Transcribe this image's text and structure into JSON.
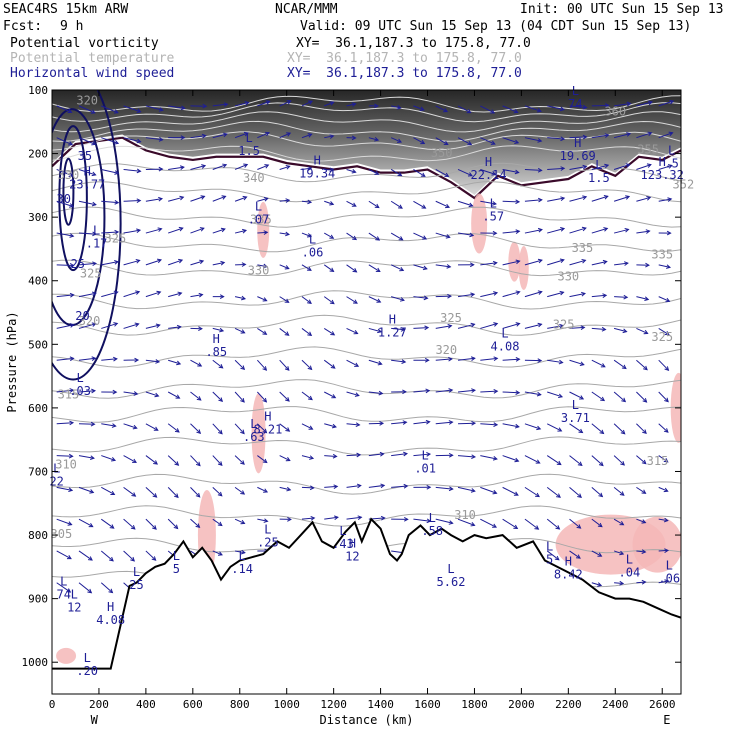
{
  "header": {
    "model": "SEAC4RS 15km ARW",
    "producer": "NCAR/MMM",
    "init": "Init: 00 UTC Sun 15 Sep 13",
    "fcst_label": "Fcst:",
    "fcst_value": "9 h",
    "valid": "Valid: 09 UTC Sun 15 Sep 13 (04 CDT Sun 15 Sep 13)",
    "fields": [
      {
        "name": "Potential vorticity",
        "xy": "XY=  36.1,187.3 to 175.8, 77.0",
        "color": "#000000"
      },
      {
        "name": "Potential temperature",
        "xy": "XY=  36.1,187.3 to 175.8, 77.0",
        "color": "#b4b4b4"
      },
      {
        "name": "Horizontal wind speed",
        "xy": "XY=  36.1,187.3 to 175.8, 77.0",
        "color": "#1e1e96"
      }
    ]
  },
  "chart_data": {
    "type": "cross-section",
    "xlabel": "Distance (km)",
    "ylabel": "Pressure (hPa)",
    "xlim": [
      0,
      2680
    ],
    "ylim": [
      1050,
      100
    ],
    "x_ticks": [
      0,
      200,
      400,
      600,
      800,
      1000,
      1200,
      1400,
      1600,
      1800,
      2000,
      2200,
      2400,
      2600
    ],
    "y_ticks": [
      100,
      200,
      300,
      400,
      500,
      600,
      700,
      800,
      900,
      1000
    ],
    "x_end_labels": {
      "left": "W",
      "right": "E"
    },
    "terrain_surface": [
      [
        0,
        1010
      ],
      [
        60,
        1010
      ],
      [
        250,
        1010
      ],
      [
        330,
        880
      ],
      [
        360,
        875
      ],
      [
        400,
        860
      ],
      [
        440,
        850
      ],
      [
        480,
        845
      ],
      [
        520,
        830
      ],
      [
        560,
        810
      ],
      [
        600,
        835
      ],
      [
        640,
        820
      ],
      [
        680,
        840
      ],
      [
        720,
        870
      ],
      [
        760,
        850
      ],
      [
        800,
        840
      ],
      [
        850,
        835
      ],
      [
        900,
        830
      ],
      [
        960,
        810
      ],
      [
        1010,
        820
      ],
      [
        1060,
        800
      ],
      [
        1110,
        780
      ],
      [
        1150,
        810
      ],
      [
        1200,
        820
      ],
      [
        1250,
        795
      ],
      [
        1290,
        780
      ],
      [
        1320,
        810
      ],
      [
        1360,
        775
      ],
      [
        1400,
        790
      ],
      [
        1440,
        830
      ],
      [
        1470,
        840
      ],
      [
        1490,
        830
      ],
      [
        1520,
        800
      ],
      [
        1570,
        785
      ],
      [
        1610,
        800
      ],
      [
        1660,
        790
      ],
      [
        1700,
        800
      ],
      [
        1750,
        810
      ],
      [
        1800,
        800
      ],
      [
        1850,
        805
      ],
      [
        1920,
        800
      ],
      [
        1980,
        820
      ],
      [
        2050,
        810
      ],
      [
        2100,
        840
      ],
      [
        2180,
        855
      ],
      [
        2260,
        870
      ],
      [
        2330,
        890
      ],
      [
        2400,
        900
      ],
      [
        2460,
        900
      ],
      [
        2520,
        905
      ],
      [
        2580,
        915
      ],
      [
        2640,
        925
      ],
      [
        2680,
        930
      ]
    ],
    "theta_labels": [
      {
        "x": 270,
        "p": 340,
        "text": "325"
      },
      {
        "x": 70,
        "p": 240,
        "text": "330"
      },
      {
        "x": 165,
        "p": 395,
        "text": "325"
      },
      {
        "x": 160,
        "p": 470,
        "text": "320"
      },
      {
        "x": 70,
        "p": 585,
        "text": "315"
      },
      {
        "x": 60,
        "p": 695,
        "text": "310"
      },
      {
        "x": 40,
        "p": 805,
        "text": "305"
      },
      {
        "x": 880,
        "p": 390,
        "text": "330"
      },
      {
        "x": 860,
        "p": 245,
        "text": "340"
      },
      {
        "x": 890,
        "p": 310,
        "text": "335"
      },
      {
        "x": 1680,
        "p": 515,
        "text": "320"
      },
      {
        "x": 1660,
        "p": 205,
        "text": "350"
      },
      {
        "x": 1700,
        "p": 465,
        "text": "325"
      },
      {
        "x": 2260,
        "p": 355,
        "text": "335"
      },
      {
        "x": 2200,
        "p": 400,
        "text": "330"
      },
      {
        "x": 2180,
        "p": 475,
        "text": "325"
      },
      {
        "x": 2600,
        "p": 365,
        "text": "335"
      },
      {
        "x": 2600,
        "p": 495,
        "text": "325"
      },
      {
        "x": 2580,
        "p": 690,
        "text": "315"
      },
      {
        "x": 1760,
        "p": 775,
        "text": "310"
      },
      {
        "x": 2400,
        "p": 140,
        "text": "360"
      },
      {
        "x": 2540,
        "p": 200,
        "text": "355"
      },
      {
        "x": 2690,
        "p": 255,
        "text": "352"
      },
      {
        "x": 150,
        "p": 123,
        "text": "320"
      }
    ],
    "speed_labels": [
      {
        "x": 110,
        "p": 380,
        "text": "25"
      },
      {
        "x": 130,
        "p": 462,
        "text": "20"
      },
      {
        "x": 140,
        "p": 210,
        "text": "35"
      },
      {
        "x": 50,
        "p": 278,
        "text": "30"
      }
    ],
    "extrema": [
      {
        "type": "L",
        "x": 190,
        "p": 348,
        "value": ".17"
      },
      {
        "type": "L",
        "x": 120,
        "p": 580,
        "value": ".03"
      },
      {
        "type": "L",
        "x": 20,
        "p": 722,
        "value": "22"
      },
      {
        "type": "L",
        "x": 50,
        "p": 900,
        "value": "74"
      },
      {
        "type": "L",
        "x": 95,
        "p": 920,
        "value": "12"
      },
      {
        "type": "H",
        "x": 150,
        "p": 255,
        "value": "23.77"
      },
      {
        "type": "L",
        "x": 360,
        "p": 885,
        "value": "25"
      },
      {
        "type": "H",
        "x": 250,
        "p": 940,
        "value": "4.08"
      },
      {
        "type": "L",
        "x": 150,
        "p": 1020,
        "value": ".20"
      },
      {
        "type": "L",
        "x": 530,
        "p": 860,
        "value": "5"
      },
      {
        "type": "L",
        "x": 810,
        "p": 860,
        "value": ".14"
      },
      {
        "type": "H",
        "x": 700,
        "p": 518,
        "value": ".85"
      },
      {
        "type": "L",
        "x": 880,
        "p": 310,
        "value": ".07"
      },
      {
        "type": "L",
        "x": 1110,
        "p": 362,
        "value": ".06"
      },
      {
        "type": "H",
        "x": 1130,
        "p": 238,
        "value": "19.34"
      },
      {
        "type": "L",
        "x": 840,
        "p": 202,
        "value": "1.5"
      },
      {
        "type": "L",
        "x": 860,
        "p": 652,
        "value": ".63"
      },
      {
        "type": "H",
        "x": 920,
        "p": 640,
        "value": "8.21"
      },
      {
        "type": "L",
        "x": 920,
        "p": 818,
        "value": ".25"
      },
      {
        "type": "L",
        "x": 1240,
        "p": 820,
        "value": ".43"
      },
      {
        "type": "H",
        "x": 1280,
        "p": 840,
        "value": "12"
      },
      {
        "type": "H",
        "x": 1450,
        "p": 488,
        "value": "1.27"
      },
      {
        "type": "L",
        "x": 1590,
        "p": 702,
        "value": ".01"
      },
      {
        "type": "L",
        "x": 1620,
        "p": 800,
        "value": ".58"
      },
      {
        "type": "L",
        "x": 1700,
        "p": 880,
        "value": "5.62"
      },
      {
        "type": "H",
        "x": 1860,
        "p": 240,
        "value": "22.14"
      },
      {
        "type": "L",
        "x": 1880,
        "p": 305,
        "value": ".57"
      },
      {
        "type": "L",
        "x": 1930,
        "p": 510,
        "value": "4.08"
      },
      {
        "type": "L",
        "x": 2230,
        "p": 128,
        "value": "74"
      },
      {
        "type": "H",
        "x": 2240,
        "p": 210,
        "value": "19.69"
      },
      {
        "type": "L",
        "x": 2330,
        "p": 245,
        "value": "1.5"
      },
      {
        "type": "L",
        "x": 2230,
        "p": 622,
        "value": "3.71"
      },
      {
        "type": "L",
        "x": 2120,
        "p": 845,
        "value": "5"
      },
      {
        "type": "H",
        "x": 2200,
        "p": 868,
        "value": "8.42"
      },
      {
        "type": "L",
        "x": 2460,
        "p": 865,
        "value": ".04"
      },
      {
        "type": "L",
        "x": 2630,
        "p": 875,
        "value": ".06"
      },
      {
        "type": "H",
        "x": 2600,
        "p": 240,
        "value": "123.32"
      },
      {
        "type": "L",
        "x": 2640,
        "p": 222,
        "value": ".5"
      }
    ]
  }
}
